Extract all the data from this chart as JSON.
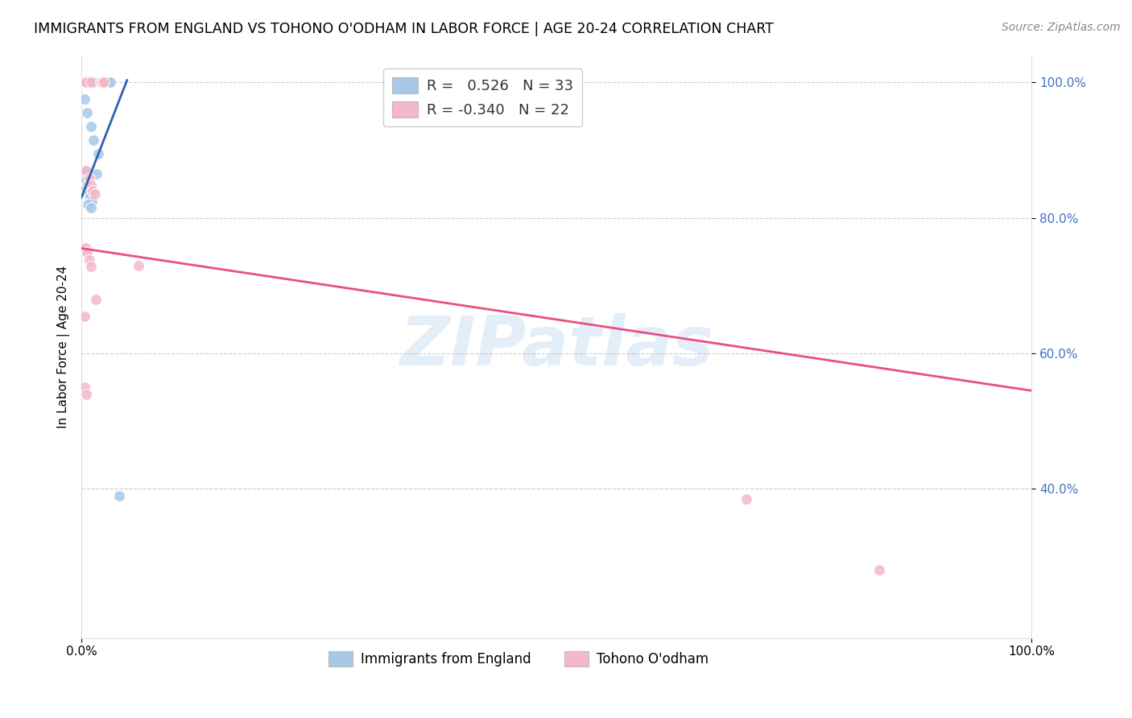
{
  "title": "IMMIGRANTS FROM ENGLAND VS TOHONO O'ODHAM IN LABOR FORCE | AGE 20-24 CORRELATION CHART",
  "source": "Source: ZipAtlas.com",
  "ylabel": "In Labor Force | Age 20-24",
  "xlim": [
    0.0,
    1.0
  ],
  "ylim": [
    0.18,
    1.04
  ],
  "x_tick_positions": [
    0.0,
    1.0
  ],
  "x_tick_labels": [
    "0.0%",
    "100.0%"
  ],
  "y_tick_positions": [
    0.4,
    0.6,
    0.8,
    1.0
  ],
  "y_tick_labels": [
    "40.0%",
    "60.0%",
    "80.0%",
    "100.0%"
  ],
  "grid_color": "#cccccc",
  "background_color": "#ffffff",
  "watermark": "ZIPatlas",
  "blue_color": "#a8c8e8",
  "pink_color": "#f4b8c8",
  "blue_line_color": "#3060b0",
  "pink_line_color": "#e85080",
  "blue_scatter": [
    [
      0.004,
      1.0
    ],
    [
      0.005,
      1.0
    ],
    [
      0.006,
      1.0
    ],
    [
      0.007,
      1.0
    ],
    [
      0.008,
      1.0
    ],
    [
      0.009,
      1.0
    ],
    [
      0.01,
      1.0
    ],
    [
      0.011,
      1.0
    ],
    [
      0.012,
      1.0
    ],
    [
      0.013,
      1.0
    ],
    [
      0.02,
      1.0
    ],
    [
      0.022,
      1.0
    ],
    [
      0.024,
      1.0
    ],
    [
      0.026,
      1.0
    ],
    [
      0.028,
      1.0
    ],
    [
      0.03,
      1.0
    ],
    [
      0.003,
      0.975
    ],
    [
      0.006,
      0.955
    ],
    [
      0.01,
      0.935
    ],
    [
      0.013,
      0.915
    ],
    [
      0.018,
      0.895
    ],
    [
      0.004,
      0.87
    ],
    [
      0.016,
      0.865
    ],
    [
      0.005,
      0.855
    ],
    [
      0.007,
      0.848
    ],
    [
      0.003,
      0.84
    ],
    [
      0.006,
      0.838
    ],
    [
      0.008,
      0.835
    ],
    [
      0.009,
      0.83
    ],
    [
      0.011,
      0.825
    ],
    [
      0.007,
      0.82
    ],
    [
      0.01,
      0.815
    ],
    [
      0.04,
      0.39
    ]
  ],
  "pink_scatter": [
    [
      0.003,
      1.0
    ],
    [
      0.005,
      1.0
    ],
    [
      0.01,
      1.0
    ],
    [
      0.02,
      1.0
    ],
    [
      0.022,
      1.0
    ],
    [
      0.024,
      1.0
    ],
    [
      0.005,
      0.87
    ],
    [
      0.008,
      0.858
    ],
    [
      0.01,
      0.848
    ],
    [
      0.012,
      0.84
    ],
    [
      0.014,
      0.835
    ],
    [
      0.06,
      0.73
    ],
    [
      0.004,
      0.755
    ],
    [
      0.006,
      0.748
    ],
    [
      0.008,
      0.738
    ],
    [
      0.01,
      0.728
    ],
    [
      0.015,
      0.68
    ],
    [
      0.003,
      0.655
    ],
    [
      0.003,
      0.55
    ],
    [
      0.005,
      0.54
    ],
    [
      0.7,
      0.385
    ],
    [
      0.84,
      0.28
    ]
  ],
  "blue_line_x0": 0.0,
  "blue_line_x1": 0.048,
  "blue_line_y0": 0.83,
  "blue_line_y1": 1.003,
  "pink_line_x0": 0.0,
  "pink_line_x1": 1.0,
  "pink_line_y0": 0.755,
  "pink_line_y1": 0.545,
  "title_fontsize": 12.5,
  "axis_label_fontsize": 11,
  "tick_fontsize": 11,
  "legend_fontsize": 13,
  "source_fontsize": 10,
  "ytick_color": "#4472c4",
  "marker_size": 100
}
